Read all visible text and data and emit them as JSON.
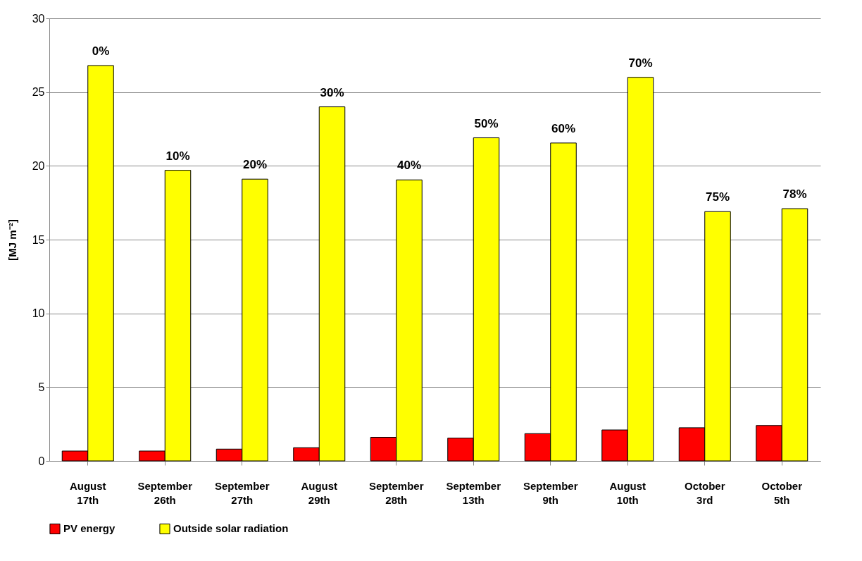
{
  "chart_data": {
    "type": "bar",
    "ylabel": "[MJ m⁻²]",
    "categories": [
      "August 17th",
      "September 26th",
      "September 27th",
      "August 29th",
      "September 28th",
      "September 13th",
      "September 9th",
      "August 10th",
      "October 3rd",
      "October 5th"
    ],
    "series": [
      {
        "name": "PV energy",
        "color": "#ff0000",
        "values": [
          0.67,
          0.67,
          0.8,
          0.9,
          1.6,
          1.55,
          1.85,
          2.1,
          2.25,
          2.4
        ]
      },
      {
        "name": "Outside solar radiation",
        "color": "#ffff00",
        "values": [
          26.8,
          19.7,
          19.1,
          24.0,
          19.05,
          21.9,
          21.55,
          26.0,
          16.9,
          17.1
        ]
      }
    ],
    "ylim": [
      0,
      30
    ],
    "yticks": [
      0,
      5,
      10,
      15,
      20,
      25,
      30
    ],
    "grid": "y",
    "legend": "bottom",
    "annotations": [
      {
        "text": "0%",
        "x": "August 17th",
        "y": 26.8
      },
      {
        "text": "10%",
        "x": "September 26th",
        "y": 19.7
      },
      {
        "text": "20%",
        "x": "September 27th",
        "y": 19.1
      },
      {
        "text": "30%",
        "x": "August 29th",
        "y": 24.0
      },
      {
        "text": "40%",
        "x": "September 28th",
        "y": 19.05
      },
      {
        "text": "50%",
        "x": "September 13th",
        "y": 21.9
      },
      {
        "text": "60%",
        "x": "September 9th",
        "y": 21.55
      },
      {
        "text": "70%",
        "x": "August 10th",
        "y": 26.0
      },
      {
        "text": "75%",
        "x": "October 3rd",
        "y": 16.9
      },
      {
        "text": "78%",
        "x": "October 5th",
        "y": 17.1
      }
    ]
  }
}
